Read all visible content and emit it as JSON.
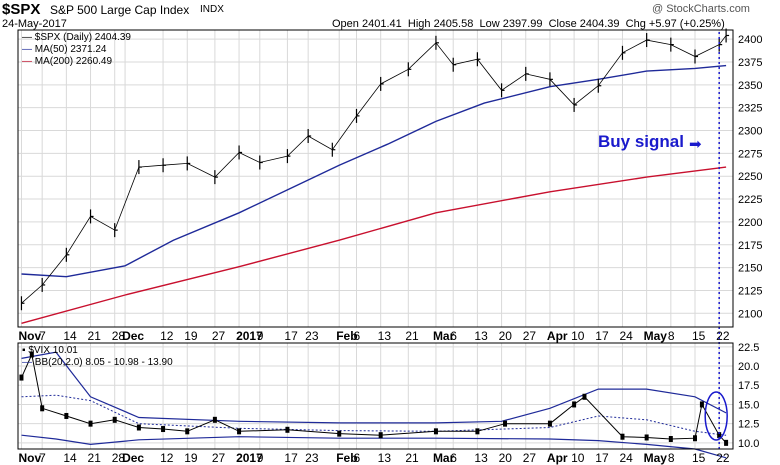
{
  "header": {
    "symbol": "$SPX",
    "name": "S&P 500 Large Cap Index",
    "exchange": "INDX",
    "date": "24-May-2017",
    "open_label": "Open",
    "open": "2401.41",
    "high_label": "High",
    "high": "2405.58",
    "low_label": "Low",
    "low": "2397.99",
    "close_label": "Close",
    "close": "2404.39",
    "chg_label": "Chg",
    "chg": "+5.97 (+0.25%)",
    "watermark": "@ StockCharts.com"
  },
  "colors": {
    "price": "#000000",
    "ma50": "#1f2a99",
    "ma200": "#c8102e",
    "bb": "#1f2a99",
    "bb_mid": "#1f2a99",
    "signal": "#1a1acc",
    "grid": "#d9d9d9"
  },
  "chart_data": [
    {
      "type": "line",
      "panel": "price",
      "legend": [
        "$SPX (Daily) 2404.39",
        "MA(50) 2371.24",
        "MA(200) 2260.49"
      ],
      "annotation": {
        "text": "Buy signal",
        "x": "2017-05-22"
      },
      "ylim": [
        2085,
        2410
      ],
      "yticks": [
        2100,
        2125,
        2150,
        2175,
        2200,
        2225,
        2250,
        2275,
        2300,
        2325,
        2350,
        2375,
        2400
      ],
      "x_labels": [
        "Nov",
        "7",
        "14",
        "21",
        "28",
        "Dec",
        "12",
        "19",
        "27",
        "2017",
        "9",
        "17",
        "23",
        "Feb",
        "6",
        "13",
        "21",
        "Mar",
        "6",
        "13",
        "20",
        "27",
        "Apr",
        "10",
        "17",
        "24",
        "May",
        "8",
        "15",
        "22"
      ],
      "x_label_dates": [
        "2016-11-01",
        "2016-11-07",
        "2016-11-14",
        "2016-11-21",
        "2016-11-28",
        "2016-12-01",
        "2016-12-12",
        "2016-12-19",
        "2016-12-27",
        "2017-01-03",
        "2017-01-09",
        "2017-01-17",
        "2017-01-23",
        "2017-02-01",
        "2017-02-06",
        "2017-02-13",
        "2017-02-21",
        "2017-03-01",
        "2017-03-06",
        "2017-03-13",
        "2017-03-20",
        "2017-03-27",
        "2017-04-03",
        "2017-04-10",
        "2017-04-17",
        "2017-04-24",
        "2017-05-01",
        "2017-05-08",
        "2017-05-15",
        "2017-05-22"
      ],
      "series": [
        {
          "name": "$SPX",
          "style": "ohlc",
          "dates": [
            "2016-11-01",
            "2016-11-07",
            "2016-11-14",
            "2016-11-21",
            "2016-11-28",
            "2016-12-05",
            "2016-12-12",
            "2016-12-19",
            "2016-12-27",
            "2017-01-03",
            "2017-01-09",
            "2017-01-17",
            "2017-01-23",
            "2017-01-30",
            "2017-02-06",
            "2017-02-13",
            "2017-02-21",
            "2017-03-01",
            "2017-03-06",
            "2017-03-13",
            "2017-03-20",
            "2017-03-27",
            "2017-04-03",
            "2017-04-10",
            "2017-04-17",
            "2017-04-24",
            "2017-05-01",
            "2017-05-08",
            "2017-05-15",
            "2017-05-22",
            "2017-05-24"
          ],
          "values": [
            2111,
            2131,
            2164,
            2206,
            2191,
            2260,
            2262,
            2264,
            2249,
            2276,
            2265,
            2272,
            2294,
            2279,
            2316,
            2351,
            2367,
            2396,
            2372,
            2378,
            2344,
            2362,
            2356,
            2328,
            2349,
            2385,
            2399,
            2394,
            2381,
            2394,
            2404
          ]
        },
        {
          "name": "MA(50)",
          "dates": [
            "2016-11-01",
            "2016-11-14",
            "2016-12-01",
            "2016-12-15",
            "2017-01-03",
            "2017-01-17",
            "2017-02-01",
            "2017-02-15",
            "2017-03-01",
            "2017-03-15",
            "2017-04-03",
            "2017-04-17",
            "2017-05-01",
            "2017-05-15",
            "2017-05-24"
          ],
          "values": [
            2143,
            2140,
            2152,
            2180,
            2210,
            2235,
            2262,
            2285,
            2310,
            2330,
            2348,
            2356,
            2365,
            2368,
            2371
          ]
        },
        {
          "name": "MA(200)",
          "dates": [
            "2016-11-01",
            "2016-12-01",
            "2017-01-03",
            "2017-02-01",
            "2017-03-01",
            "2017-04-03",
            "2017-05-01",
            "2017-05-24"
          ],
          "values": [
            2089,
            2120,
            2151,
            2180,
            2210,
            2233,
            2249,
            2260
          ]
        }
      ]
    },
    {
      "type": "line",
      "panel": "vix",
      "legend": [
        "$VIX 10.01",
        "BB(20,2.0) 8.05 - 10.98 - 13.90"
      ],
      "ylim": [
        9.2,
        23
      ],
      "yticks": [
        10.0,
        12.5,
        15.0,
        17.5,
        20.0,
        22.5
      ],
      "series": [
        {
          "name": "$VIX",
          "style": "candle",
          "dates": [
            "2016-11-01",
            "2016-11-04",
            "2016-11-07",
            "2016-11-14",
            "2016-11-21",
            "2016-11-28",
            "2016-12-05",
            "2016-12-12",
            "2016-12-19",
            "2016-12-27",
            "2017-01-03",
            "2017-01-17",
            "2017-02-01",
            "2017-02-13",
            "2017-03-01",
            "2017-03-13",
            "2017-03-21",
            "2017-04-03",
            "2017-04-10",
            "2017-04-13",
            "2017-04-24",
            "2017-05-01",
            "2017-05-08",
            "2017-05-15",
            "2017-05-17",
            "2017-05-22",
            "2017-05-24"
          ],
          "values": [
            18.5,
            21.5,
            14.5,
            13.5,
            12.5,
            13.0,
            12.0,
            11.8,
            11.5,
            13.0,
            11.5,
            11.7,
            11.2,
            11.0,
            11.5,
            11.5,
            12.5,
            12.5,
            15.0,
            16.0,
            10.8,
            10.7,
            10.5,
            10.6,
            15.0,
            11.0,
            10.0
          ]
        },
        {
          "name": "BB upper",
          "dates": [
            "2016-11-01",
            "2016-11-11",
            "2016-11-21",
            "2016-12-05",
            "2017-01-03",
            "2017-02-01",
            "2017-03-01",
            "2017-03-20",
            "2017-04-03",
            "2017-04-17",
            "2017-05-01",
            "2017-05-15",
            "2017-05-24"
          ],
          "values": [
            21.0,
            21.8,
            16.0,
            13.3,
            12.8,
            12.6,
            12.6,
            12.8,
            14.5,
            17.0,
            17.0,
            16.0,
            13.9
          ]
        },
        {
          "name": "BB middle",
          "dates": [
            "2016-11-01",
            "2016-11-11",
            "2016-11-21",
            "2016-12-05",
            "2017-01-03",
            "2017-02-01",
            "2017-03-01",
            "2017-04-03",
            "2017-04-17",
            "2017-05-01",
            "2017-05-15",
            "2017-05-24"
          ],
          "values": [
            16.0,
            16.2,
            15.5,
            12.5,
            11.9,
            11.6,
            11.5,
            12.0,
            13.5,
            13.0,
            11.5,
            10.98
          ]
        },
        {
          "name": "BB lower",
          "dates": [
            "2016-11-01",
            "2016-11-11",
            "2016-11-21",
            "2016-12-05",
            "2017-01-03",
            "2017-02-01",
            "2017-03-01",
            "2017-04-03",
            "2017-04-17",
            "2017-05-01",
            "2017-05-15",
            "2017-05-24"
          ],
          "values": [
            11.0,
            10.5,
            9.8,
            10.4,
            10.8,
            10.6,
            10.6,
            10.5,
            10.3,
            9.8,
            9.2,
            8.05
          ]
        }
      ]
    }
  ]
}
